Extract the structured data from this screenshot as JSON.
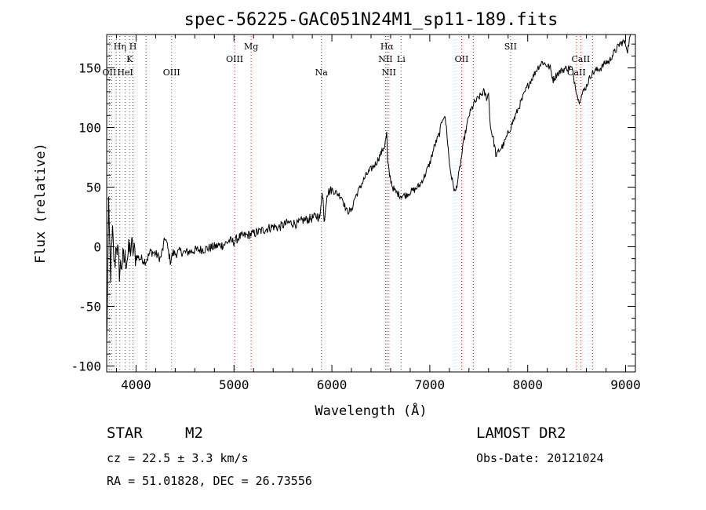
{
  "chart_data": {
    "type": "line",
    "title": "spec-56225-GAC051N24M1_sp11-189.fits",
    "xlabel": "Wavelength (Å)",
    "ylabel": "Flux (relative)",
    "xlim": [
      3700,
      9100
    ],
    "ylim": [
      -105,
      178
    ],
    "xticks": [
      4000,
      5000,
      6000,
      7000,
      8000,
      9000
    ],
    "yticks": [
      -100,
      -50,
      0,
      50,
      100,
      150
    ],
    "grid": false,
    "line_color": "#000000",
    "marker_color": "#ff0000",
    "series": [
      {
        "x": [
          3700,
          3720,
          3740,
          3760,
          3780,
          3800,
          3830,
          3860,
          3900,
          3950,
          4000,
          4050,
          4100,
          4150,
          4200,
          4250,
          4300,
          4350,
          4380,
          4400,
          4450,
          4500,
          4600,
          4700,
          4800,
          4900,
          4950,
          5000,
          5050,
          5100,
          5150,
          5200,
          5300,
          5400,
          5450,
          5500,
          5550,
          5600,
          5650,
          5700,
          5750,
          5800,
          5850,
          5880,
          5900,
          5910,
          5920,
          5950,
          6000,
          6050,
          6100,
          6150,
          6200,
          6230,
          6260,
          6300,
          6350,
          6400,
          6450,
          6500,
          6540,
          6560,
          6570,
          6590,
          6620,
          6650,
          6700,
          6750,
          6800,
          6850,
          6900,
          6950,
          7000,
          7050,
          7100,
          7130,
          7150,
          7170,
          7200,
          7230,
          7260,
          7300,
          7350,
          7400,
          7450,
          7500,
          7550,
          7580,
          7600,
          7620,
          7650,
          7680,
          7700,
          7720,
          7750,
          7800,
          7850,
          7900,
          7950,
          8000,
          8050,
          8100,
          8150,
          8200,
          8230,
          8260,
          8300,
          8350,
          8400,
          8450,
          8500,
          8520,
          8550,
          8600,
          8650,
          8700,
          8750,
          8800,
          8830,
          8860,
          8900,
          8940,
          8980,
          9000,
          9020,
          9050
        ],
        "y": [
          -85,
          30,
          -22,
          10,
          -18,
          5,
          -20,
          -12,
          -10,
          0,
          -8,
          -10,
          -12,
          -4,
          -6,
          -10,
          8,
          -12,
          -5,
          -6,
          -4,
          -5,
          -3,
          -2,
          0,
          2,
          5,
          4,
          8,
          9,
          10,
          11,
          14,
          17,
          16,
          18,
          20,
          20,
          19,
          22,
          23,
          24,
          26,
          24,
          48,
          40,
          20,
          45,
          48,
          45,
          42,
          30,
          30,
          40,
          45,
          52,
          60,
          65,
          70,
          78,
          85,
          95,
          70,
          60,
          50,
          46,
          43,
          43,
          46,
          48,
          52,
          60,
          70,
          85,
          95,
          108,
          110,
          100,
          70,
          55,
          45,
          62,
          90,
          110,
          120,
          125,
          130,
          125,
          128,
          100,
          90,
          75,
          80,
          82,
          85,
          95,
          105,
          115,
          125,
          135,
          142,
          150,
          155,
          152,
          150,
          140,
          145,
          148,
          150,
          150,
          130,
          122,
          127,
          135,
          145,
          148,
          150,
          155,
          155,
          160,
          165,
          170,
          172,
          170,
          165,
          178
        ]
      }
    ],
    "lines": [
      {
        "label": "Hη",
        "x": 3835,
        "row": 1,
        "color": "#555555"
      },
      {
        "label": "H",
        "x": 3969,
        "row": 1,
        "color": "#555555"
      },
      {
        "label": "K",
        "x": 3934,
        "row": 2,
        "color": "#555555"
      },
      {
        "label": "OII",
        "x": 3727,
        "row": 3,
        "color": "#555555"
      },
      {
        "label": "HeI",
        "x": 3889,
        "row": 3,
        "color": "#555555"
      },
      {
        "label": "OIII",
        "x": 4363,
        "row": 3,
        "color": "#555555"
      },
      {
        "label": "Mg",
        "x": 5175,
        "row": 1,
        "color": "#ff0000"
      },
      {
        "label": "OIII",
        "x": 5007,
        "row": 2,
        "color": "#ff0000"
      },
      {
        "label": "Na",
        "x": 5893,
        "row": 3,
        "color": "#555555"
      },
      {
        "label": "Hα",
        "x": 6563,
        "row": 1,
        "color": "#ff0000"
      },
      {
        "label": "NII",
        "x": 6548,
        "row": 2,
        "color": "#ff0000"
      },
      {
        "label": "Li",
        "x": 6707,
        "row": 2,
        "color": "#ff0000"
      },
      {
        "label": "NII",
        "x": 6583,
        "row": 3,
        "color": "#ff0000"
      },
      {
        "label": "OII",
        "x": 7325,
        "row": 2,
        "color": "#ff0000"
      },
      {
        "label": "SII",
        "x": 7825,
        "row": 1,
        "color": "#555555"
      },
      {
        "label": "CaII",
        "x": 8542,
        "row": 2,
        "color": "#ff0000"
      },
      {
        "label": "CaII",
        "x": 8498,
        "row": 3,
        "color": "#ff0000"
      },
      {
        "label": "",
        "x": 3750,
        "row": 0,
        "color": "#555555"
      },
      {
        "label": "",
        "x": 3798,
        "row": 0,
        "color": "#555555"
      },
      {
        "label": "",
        "x": 4102,
        "row": 0,
        "color": "#555555"
      },
      {
        "label": "",
        "x": 7444,
        "row": 0,
        "color": "#ff0000"
      },
      {
        "label": "",
        "x": 8662,
        "row": 0,
        "color": "#ff0000"
      }
    ]
  },
  "info": {
    "class": "STAR",
    "subclass": "M2",
    "survey": "LAMOST DR2",
    "cz": "cz = 22.5 ± 3.3 km/s",
    "obs_date": "Obs-Date: 20121024",
    "coords": "RA =  51.01828, DEC =  26.73556"
  }
}
